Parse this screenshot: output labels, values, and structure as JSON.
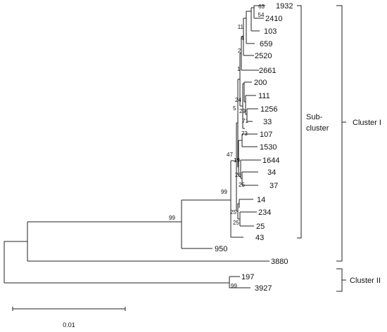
{
  "leaves": [
    "1932",
    "2410",
    "103",
    "659",
    "2520",
    "2661",
    "200",
    "111",
    "1256",
    "33",
    "107",
    "1530",
    "1644",
    "34",
    "37",
    "14",
    "234",
    "25",
    "43",
    "950",
    "3880",
    "197",
    "3927"
  ],
  "bootstrap": {
    "n1932_2410": "63",
    "n103": "54",
    "n659": "11",
    "n2520": "4",
    "n2661": "2",
    "nA": "1",
    "n1256_33": "71",
    "nB": "24",
    "nC": "29",
    "nD": "5",
    "n107_1530": "73",
    "n34_37": "26",
    "n1644": "25",
    "nE": "19",
    "nF": "47",
    "n234_25": "25",
    "n14": "25",
    "nMain": "99",
    "n950": "99",
    "n197_3927": "99"
  },
  "clusters": {
    "sub_cluster": {
      "line1": "Sub-",
      "line2": "cluster"
    },
    "cluster1": "Cluster I",
    "cluster2": "Cluster II"
  },
  "scale_bar": "0.01"
}
